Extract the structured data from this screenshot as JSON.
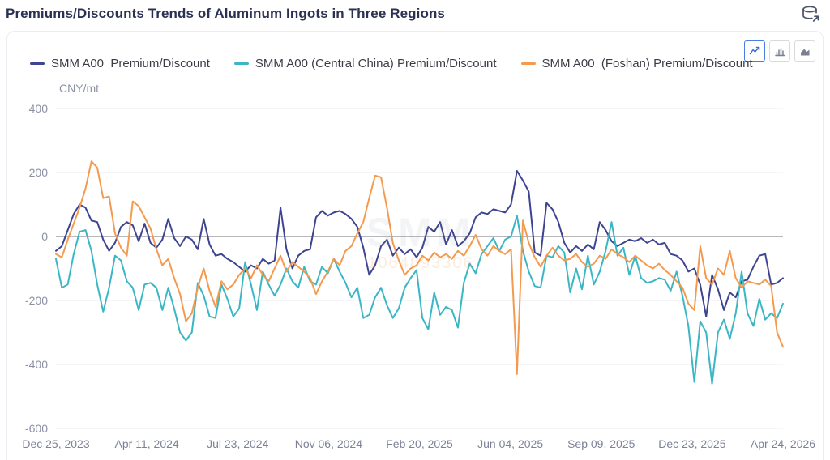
{
  "header": {
    "title": "Premiums/Discounts Trends of Aluminum Ingots in Three Regions"
  },
  "toolbar": {
    "buttons": [
      {
        "id": "line-chart",
        "active": true
      },
      {
        "id": "bar-chart",
        "active": false
      },
      {
        "id": "area-chart",
        "active": false
      }
    ]
  },
  "watermark": {
    "brand": "SMM",
    "number": "1064893306"
  },
  "colors": {
    "grid_line": "#e8eaf3",
    "zero_line": "#8d8d93",
    "axis_text": "#8c91a5",
    "x_axis_text": "#7d8297",
    "active_button": "#4a7de0"
  },
  "chart_data": {
    "type": "line",
    "title": "Premiums/Discounts Trends of Aluminum Ingots in Three Regions",
    "xlabel": "",
    "ylabel": "CNY/mt",
    "grid": true,
    "legend_position": "top",
    "y_axis": {
      "unit": "CNY/mt",
      "ticks": [
        400,
        200,
        0,
        -200,
        -400,
        -600
      ],
      "range": [
        -600,
        400
      ]
    },
    "x_axis": {
      "labels": [
        "Dec 25, 2023",
        "Apr 11, 2024",
        "Jul 23, 2024",
        "Nov 06, 2024",
        "Feb 20, 2025",
        "Jun 04, 2025",
        "Sep 09, 2025",
        "Dec 23, 2025",
        "Apr 24, 2026"
      ],
      "interval": "weekly"
    },
    "series": [
      {
        "name": "SMM A00  Premium/Discount",
        "color": "#3e4491",
        "values": [
          -45,
          -30,
          20,
          70,
          100,
          90,
          50,
          45,
          -10,
          -45,
          -20,
          30,
          45,
          35,
          -15,
          40,
          -20,
          -35,
          -10,
          55,
          -5,
          -30,
          0,
          -10,
          -40,
          55,
          -25,
          -60,
          -55,
          -70,
          -80,
          -95,
          -110,
          -90,
          -100,
          -70,
          -85,
          -75,
          90,
          -40,
          -100,
          -60,
          -45,
          -40,
          60,
          80,
          65,
          75,
          80,
          70,
          55,
          30,
          -35,
          -120,
          -90,
          -30,
          -10,
          -60,
          -35,
          -55,
          -40,
          -65,
          -35,
          30,
          15,
          45,
          -25,
          20,
          -30,
          -15,
          10,
          60,
          75,
          70,
          85,
          80,
          75,
          100,
          205,
          175,
          140,
          -50,
          -60,
          105,
          85,
          45,
          -20,
          -50,
          -30,
          -45,
          -25,
          -40,
          45,
          20,
          -15,
          -30,
          -20,
          -10,
          -15,
          -5,
          -20,
          -10,
          -25,
          -20,
          -55,
          -60,
          -75,
          -110,
          -100,
          -150,
          -250,
          -120,
          -165,
          -230,
          -175,
          -190,
          -140,
          -135,
          -95,
          -60,
          -55,
          -150,
          -145,
          -130
        ]
      },
      {
        "name": "SMM A00 (Central China) Premium/Discount",
        "color": "#3ab6c4",
        "values": [
          -70,
          -160,
          -150,
          -55,
          15,
          20,
          -45,
          -150,
          -235,
          -160,
          -60,
          -75,
          -140,
          -160,
          -230,
          -150,
          -145,
          -160,
          -230,
          -160,
          -225,
          -300,
          -325,
          -300,
          -145,
          -185,
          -250,
          -255,
          -150,
          -195,
          -250,
          -225,
          -80,
          -150,
          -230,
          -110,
          -150,
          -185,
          -150,
          -100,
          -140,
          -160,
          -95,
          -140,
          -150,
          -95,
          -115,
          -70,
          -110,
          -145,
          -190,
          -160,
          -255,
          -245,
          -190,
          -160,
          -215,
          -255,
          -225,
          -160,
          -130,
          -105,
          -255,
          -290,
          -175,
          -245,
          -220,
          -230,
          -285,
          -145,
          -85,
          -115,
          -55,
          -30,
          -5,
          -45,
          -10,
          0,
          65,
          -45,
          -110,
          -155,
          -160,
          -60,
          -65,
          -30,
          -50,
          -175,
          -100,
          -165,
          -60,
          -150,
          -110,
          -45,
          45,
          -60,
          -35,
          -120,
          -60,
          -130,
          -145,
          -140,
          -130,
          -135,
          -170,
          -110,
          -185,
          -280,
          -455,
          -265,
          -300,
          -460,
          -300,
          -260,
          -320,
          -240,
          -110,
          -240,
          -280,
          -195,
          -260,
          -240,
          -255,
          -210
        ]
      },
      {
        "name": "SMM A00  (Foshan) Premium/Discount",
        "color": "#f49a4e",
        "values": [
          -55,
          -65,
          -10,
          40,
          90,
          150,
          235,
          215,
          120,
          125,
          10,
          -35,
          -60,
          110,
          95,
          60,
          25,
          -40,
          -90,
          -70,
          -130,
          -180,
          -265,
          -240,
          -160,
          -100,
          -170,
          -220,
          -140,
          -165,
          -150,
          -120,
          -100,
          -130,
          -90,
          -120,
          -140,
          -100,
          -60,
          -110,
          -80,
          -95,
          -110,
          -130,
          -180,
          -140,
          -110,
          -70,
          -90,
          -45,
          -30,
          10,
          45,
          120,
          190,
          185,
          90,
          -20,
          -75,
          -120,
          -100,
          -90,
          -60,
          -75,
          -50,
          -65,
          -55,
          -70,
          -45,
          -60,
          -30,
          5,
          -40,
          -60,
          -30,
          -45,
          -55,
          -40,
          -430,
          50,
          -20,
          -65,
          -95,
          -60,
          -35,
          -60,
          -75,
          -70,
          -55,
          -80,
          -95,
          -85,
          -60,
          -70,
          -40,
          -55,
          -65,
          -80,
          -60,
          -75,
          -90,
          -100,
          -85,
          -105,
          -120,
          -140,
          -160,
          -210,
          -230,
          -30,
          -130,
          -150,
          -100,
          -120,
          -45,
          -130,
          -160,
          -140,
          -145,
          -150,
          -135,
          -155,
          -300,
          -345
        ]
      }
    ]
  }
}
